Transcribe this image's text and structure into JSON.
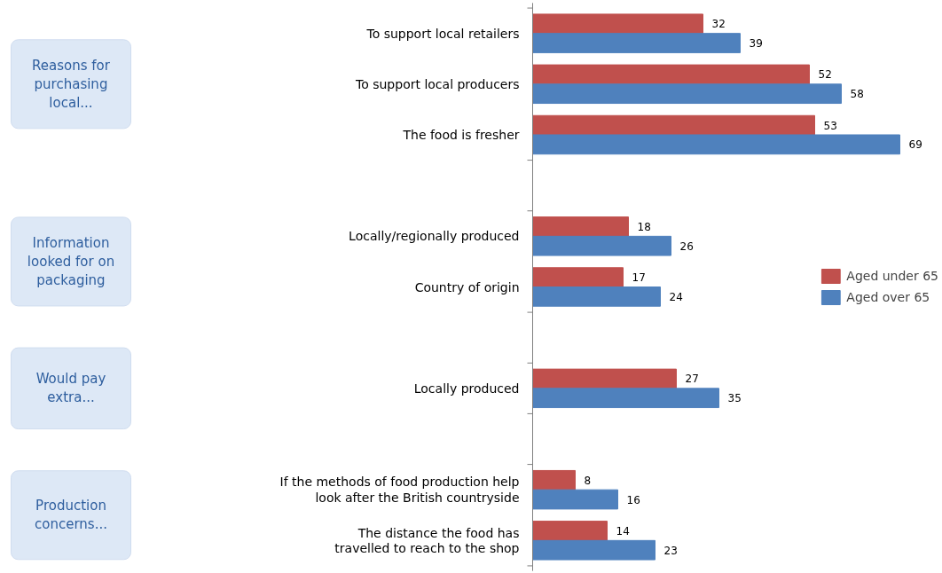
{
  "chart_data": {
    "type": "bar",
    "orientation": "horizontal",
    "categories": [
      "To support local retailers",
      "To support local producers",
      "The food is fresher",
      null,
      "Locally/regionally produced",
      "Country of origin",
      null,
      "Locally produced",
      null,
      "If the methods of food production help look after the British countryside",
      "The distance the food has travelled to reach to the shop"
    ],
    "series": [
      {
        "name": "Aged under 65",
        "color": "#c0504d",
        "values": [
          32,
          52,
          53,
          null,
          18,
          17,
          null,
          27,
          null,
          8,
          14
        ]
      },
      {
        "name": "Aged over 65",
        "color": "#4f81bd",
        "values": [
          39,
          58,
          69,
          null,
          26,
          24,
          null,
          35,
          null,
          16,
          23
        ]
      }
    ],
    "annotations": [
      "Reasons for purchasing local...",
      "Information looked for on packaging",
      "Would pay extra...",
      "Production concerns..."
    ],
    "data_labels": true,
    "legend": "right",
    "grid": false
  }
}
